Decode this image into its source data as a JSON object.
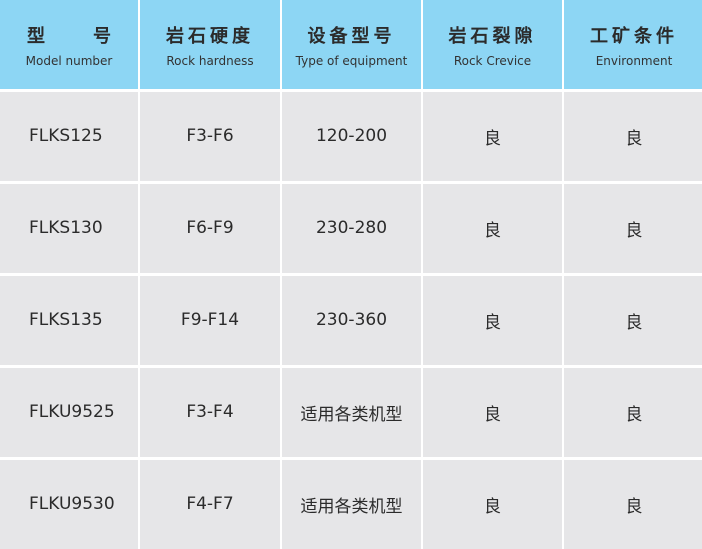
{
  "header": [
    {
      "zh": "型 号",
      "zh_parts": [
        "型",
        "号"
      ],
      "en": "Model number"
    },
    {
      "zh": "岩石硬度",
      "en": "Rock hardness"
    },
    {
      "zh": "设备型号",
      "en": "Type of equipment"
    },
    {
      "zh": "岩石裂隙",
      "en": "Rock Crevice"
    },
    {
      "zh": "工矿条件",
      "en": "Environment"
    }
  ],
  "rows": [
    [
      "FLKS125",
      "F3-F6",
      "120-200",
      "良",
      "良"
    ],
    [
      "FLKS130",
      "F6-F9",
      "230-280",
      "良",
      "良"
    ],
    [
      "FLKS135",
      "F9-F14",
      "230-360",
      "良",
      "良"
    ],
    [
      "FLKU9525",
      "F3-F4",
      "适用各类机型",
      "良",
      "良"
    ],
    [
      "FLKU9530",
      "F4-F7",
      "适用各类机型",
      "良",
      "良"
    ]
  ],
  "colors": {
    "header": "#8dd6f4",
    "cell": "#e6e6e8"
  }
}
